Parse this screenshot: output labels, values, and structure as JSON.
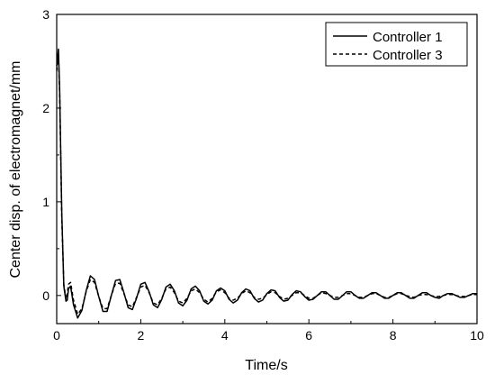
{
  "chart_data": {
    "type": "line",
    "title": "",
    "xlabel": "Time/s",
    "ylabel": "Center disp. of electromagnet/mm",
    "xlim": [
      0,
      10
    ],
    "ylim": [
      -0.3,
      3
    ],
    "xticks": [
      0,
      2,
      4,
      6,
      8,
      10
    ],
    "yticks": [
      0,
      1,
      2,
      3
    ],
    "x_tick_labels": [
      "0",
      "2",
      "4",
      "6",
      "8",
      "10"
    ],
    "y_tick_labels": [
      "0",
      "1",
      "2",
      "3"
    ],
    "grid": false,
    "legend_position": "top-right",
    "series": [
      {
        "name": "Controller 1",
        "line_style": "solid",
        "color": "#000000",
        "x": [
          0.0,
          0.04,
          0.07,
          0.12,
          0.17,
          0.22,
          0.25,
          0.28,
          0.33,
          0.4,
          0.5,
          0.6,
          0.7,
          0.8,
          0.9,
          1.0,
          1.1,
          1.2,
          1.3,
          1.4,
          1.5,
          1.6,
          1.7,
          1.8,
          1.9,
          2.0,
          2.1,
          2.2,
          2.3,
          2.4,
          2.5,
          2.6,
          2.7,
          2.8,
          2.9,
          3.0,
          3.1,
          3.2,
          3.3,
          3.4,
          3.5,
          3.6,
          3.7,
          3.8,
          3.9,
          4.0,
          4.1,
          4.2,
          4.3,
          4.4,
          4.5,
          4.6,
          4.7,
          4.8,
          4.9,
          5.0,
          5.1,
          5.2,
          5.3,
          5.4,
          5.5,
          5.6,
          5.7,
          5.8,
          5.9,
          6.0,
          6.1,
          6.2,
          6.3,
          6.4,
          6.5,
          6.6,
          6.7,
          6.8,
          6.9,
          7.0,
          7.1,
          7.2,
          7.3,
          7.4,
          7.5,
          7.6,
          7.7,
          7.8,
          7.9,
          8.0,
          8.1,
          8.2,
          8.3,
          8.4,
          8.5,
          8.6,
          8.7,
          8.8,
          8.9,
          9.0,
          9.1,
          9.2,
          9.3,
          9.4,
          9.5,
          9.6,
          9.7,
          9.8,
          9.9,
          10.0
        ],
        "values": [
          2.45,
          2.63,
          2.2,
          0.9,
          0.1,
          -0.06,
          -0.05,
          0.07,
          0.1,
          -0.1,
          -0.24,
          -0.16,
          0.05,
          0.21,
          0.17,
          -0.01,
          -0.17,
          -0.17,
          0.0,
          0.16,
          0.17,
          0.03,
          -0.13,
          -0.15,
          -0.03,
          0.12,
          0.14,
          0.04,
          -0.1,
          -0.13,
          -0.04,
          0.09,
          0.12,
          0.05,
          -0.08,
          -0.11,
          -0.05,
          0.07,
          0.1,
          0.05,
          -0.06,
          -0.09,
          -0.05,
          0.05,
          0.08,
          0.05,
          -0.04,
          -0.08,
          -0.05,
          0.03,
          0.07,
          0.05,
          -0.03,
          -0.07,
          -0.05,
          0.02,
          0.06,
          0.05,
          -0.02,
          -0.06,
          -0.05,
          0.01,
          0.05,
          0.04,
          -0.01,
          -0.05,
          -0.04,
          0.0,
          0.04,
          0.04,
          0.0,
          -0.04,
          -0.04,
          0.0,
          0.04,
          0.04,
          0.0,
          -0.03,
          -0.03,
          0.0,
          0.03,
          0.03,
          0.0,
          -0.03,
          -0.03,
          0.0,
          0.03,
          0.03,
          0.0,
          -0.03,
          -0.03,
          0.0,
          0.03,
          0.03,
          0.0,
          -0.02,
          -0.03,
          0.0,
          0.02,
          0.02,
          0.0,
          -0.02,
          -0.02,
          0.0,
          0.02,
          0.02
        ]
      },
      {
        "name": "Controller 3",
        "line_style": "dashed",
        "color": "#000000",
        "x": [
          0.0,
          0.04,
          0.07,
          0.12,
          0.17,
          0.22,
          0.25,
          0.28,
          0.33,
          0.4,
          0.5,
          0.6,
          0.7,
          0.8,
          0.9,
          1.0,
          1.1,
          1.2,
          1.3,
          1.4,
          1.5,
          1.6,
          1.7,
          1.8,
          1.9,
          2.0,
          2.1,
          2.2,
          2.3,
          2.4,
          2.5,
          2.6,
          2.7,
          2.8,
          2.9,
          3.0,
          3.1,
          3.2,
          3.3,
          3.4,
          3.5,
          3.6,
          3.7,
          3.8,
          3.9,
          4.0,
          4.1,
          4.2,
          4.3,
          4.4,
          4.5,
          4.6,
          4.7,
          4.8,
          4.9,
          5.0,
          5.1,
          5.2,
          5.3,
          5.4,
          5.5,
          5.6,
          5.7,
          5.8,
          5.9,
          6.0,
          6.1,
          6.2,
          6.3,
          6.4,
          6.5,
          6.6,
          6.7,
          6.8,
          6.9,
          7.0,
          7.1,
          7.2,
          7.3,
          7.4,
          7.5,
          7.6,
          7.7,
          7.8,
          7.9,
          8.0,
          8.1,
          8.2,
          8.3,
          8.4,
          8.5,
          8.6,
          8.7,
          8.8,
          8.9,
          9.0,
          9.1,
          9.2,
          9.3,
          9.4,
          9.5,
          9.6,
          9.7,
          9.8,
          9.9,
          10.0
        ],
        "values": [
          2.4,
          2.58,
          2.15,
          0.85,
          0.12,
          -0.04,
          0.02,
          0.12,
          0.14,
          -0.05,
          -0.2,
          -0.14,
          0.04,
          0.17,
          0.14,
          -0.01,
          -0.14,
          -0.14,
          0.0,
          0.13,
          0.13,
          0.02,
          -0.1,
          -0.12,
          -0.02,
          0.09,
          0.11,
          0.03,
          -0.08,
          -0.1,
          -0.03,
          0.07,
          0.09,
          0.03,
          -0.06,
          -0.08,
          -0.03,
          0.05,
          0.07,
          0.03,
          -0.04,
          -0.07,
          -0.03,
          0.04,
          0.06,
          0.03,
          -0.03,
          -0.05,
          -0.03,
          0.02,
          0.05,
          0.03,
          -0.02,
          -0.04,
          -0.03,
          0.01,
          0.04,
          0.03,
          -0.01,
          -0.04,
          -0.03,
          0.0,
          0.03,
          0.03,
          0.0,
          -0.03,
          -0.03,
          0.0,
          0.03,
          0.02,
          0.0,
          -0.02,
          -0.02,
          0.0,
          0.02,
          0.02,
          0.0,
          -0.02,
          -0.02,
          0.0,
          0.02,
          0.02,
          0.0,
          -0.02,
          -0.02,
          0.0,
          0.02,
          0.02,
          0.0,
          -0.01,
          -0.02,
          0.0,
          0.01,
          0.01,
          0.0,
          -0.01,
          -0.01,
          0.0,
          0.01,
          0.01,
          0.0,
          -0.01,
          -0.01,
          0.0,
          0.01,
          0.01
        ]
      }
    ]
  }
}
